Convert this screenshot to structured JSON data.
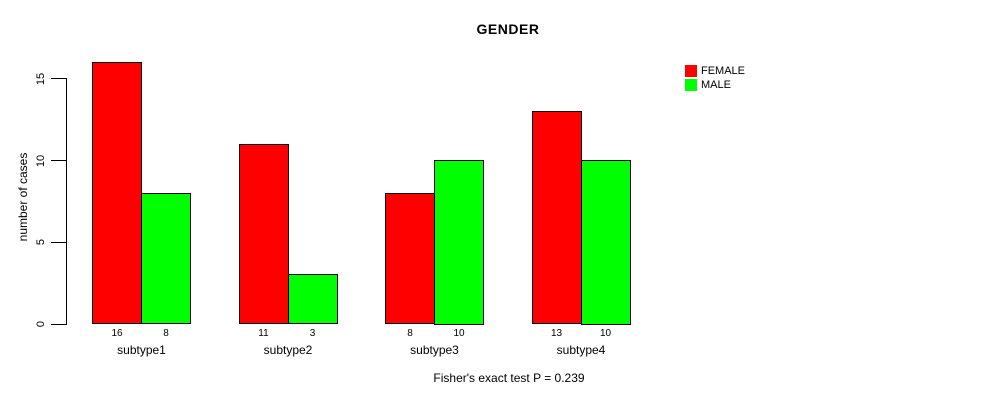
{
  "chart_data": {
    "type": "bar",
    "title": "GENDER",
    "ylabel": "number of cases",
    "xlabel": "",
    "categories": [
      "subtype1",
      "subtype2",
      "subtype3",
      "subtype4"
    ],
    "series": [
      {
        "name": "FEMALE",
        "color": "#ff0000",
        "values": [
          16,
          11,
          8,
          13
        ]
      },
      {
        "name": "MALE",
        "color": "#00ff00",
        "values": [
          8,
          3,
          10,
          10
        ]
      }
    ],
    "yticks": [
      0,
      5,
      10,
      15
    ],
    "ylim": [
      0,
      16.5
    ],
    "bar_outline_color": "#000000",
    "show_bar_values": true,
    "bar_value_labels": [
      [
        "16",
        "8"
      ],
      [
        "11",
        "3"
      ],
      [
        "8",
        "10"
      ],
      [
        "13",
        "10"
      ]
    ],
    "legend_position": "top-right",
    "grid": false,
    "annotation": "Fisher's exact test P = 0.239"
  }
}
